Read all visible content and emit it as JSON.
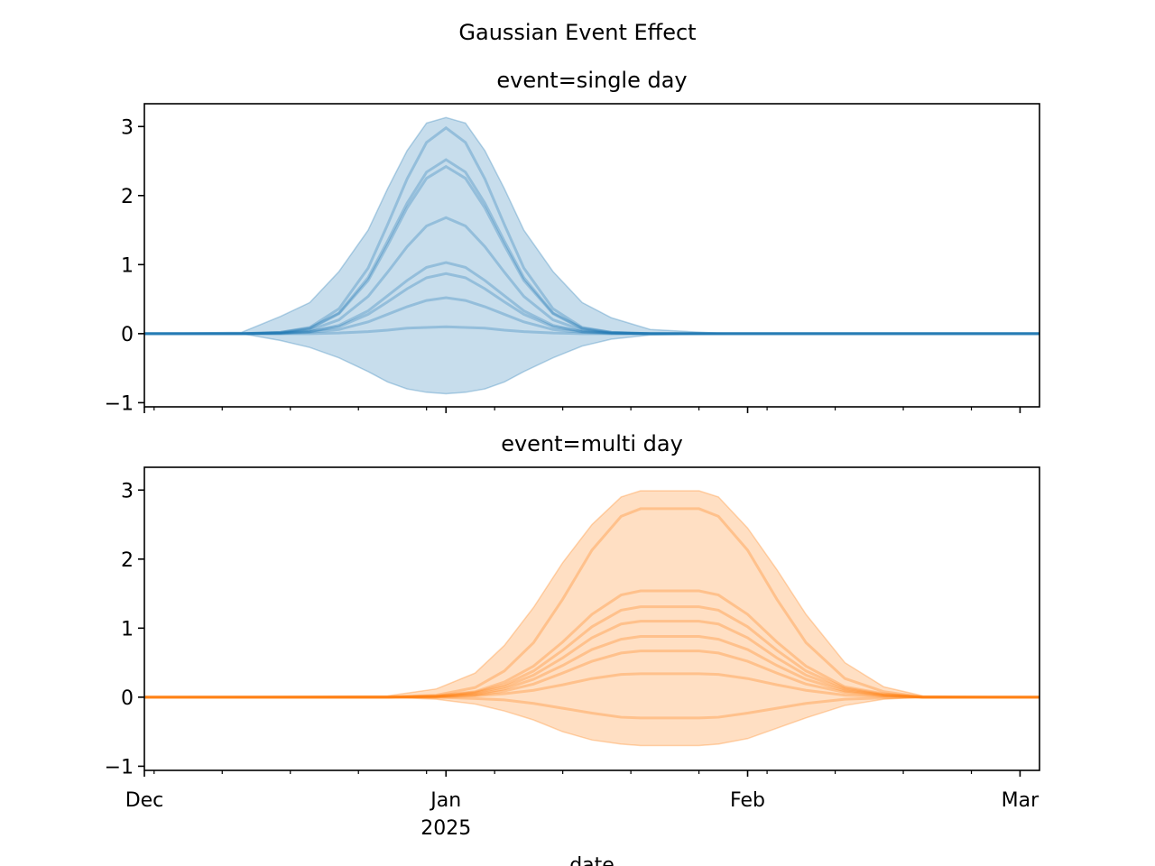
{
  "title": "Gaussian Event Effect",
  "chart_data": [
    {
      "type": "line",
      "title": "event=single day",
      "color": "#1f77b4",
      "x": [
        0,
        10,
        14,
        17,
        20,
        23,
        25,
        27,
        29,
        31,
        33,
        35,
        37,
        39,
        42,
        45,
        48,
        52,
        60,
        92
      ],
      "xlim": [
        0,
        92
      ],
      "ylim": [
        -1.06,
        3.33
      ],
      "yticks": [
        {
          "value": -1,
          "label": "−1"
        },
        0,
        1,
        2,
        3
      ],
      "band": {
        "upper": [
          0,
          0.02,
          0.25,
          0.45,
          0.9,
          1.5,
          2.1,
          2.65,
          3.05,
          3.13,
          3.05,
          2.65,
          2.1,
          1.5,
          0.9,
          0.45,
          0.23,
          0.06,
          0,
          0
        ],
        "lower": [
          0,
          0,
          -0.1,
          -0.2,
          -0.35,
          -0.55,
          -0.7,
          -0.8,
          -0.85,
          -0.87,
          -0.85,
          -0.8,
          -0.7,
          -0.55,
          -0.35,
          -0.18,
          -0.08,
          -0.02,
          0,
          0
        ]
      },
      "series": [
        {
          "values": [
            0,
            0,
            0.02,
            0.09,
            0.36,
            0.95,
            1.58,
            2.24,
            2.77,
            2.98,
            2.77,
            2.24,
            1.58,
            0.95,
            0.36,
            0.09,
            0.02,
            0,
            0,
            0
          ]
        },
        {
          "values": [
            0,
            0,
            0.02,
            0.08,
            0.3,
            0.81,
            1.34,
            1.89,
            2.34,
            2.52,
            2.34,
            1.89,
            1.34,
            0.81,
            0.3,
            0.08,
            0.02,
            0,
            0,
            0
          ]
        },
        {
          "values": [
            0,
            0,
            0.01,
            0.07,
            0.29,
            0.77,
            1.28,
            1.82,
            2.25,
            2.42,
            2.25,
            1.82,
            1.28,
            0.77,
            0.29,
            0.07,
            0.01,
            0,
            0,
            0
          ]
        },
        {
          "values": [
            0,
            0,
            0.01,
            0.05,
            0.2,
            0.54,
            0.89,
            1.26,
            1.56,
            1.68,
            1.56,
            1.26,
            0.89,
            0.54,
            0.2,
            0.05,
            0.01,
            0,
            0,
            0
          ]
        },
        {
          "values": [
            0,
            0,
            0.01,
            0.03,
            0.12,
            0.33,
            0.55,
            0.77,
            0.96,
            1.03,
            0.96,
            0.77,
            0.55,
            0.33,
            0.12,
            0.03,
            0.01,
            0,
            0,
            0
          ]
        },
        {
          "values": [
            0,
            0,
            0.01,
            0.03,
            0.1,
            0.28,
            0.46,
            0.65,
            0.81,
            0.87,
            0.81,
            0.65,
            0.46,
            0.28,
            0.1,
            0.03,
            0.01,
            0,
            0,
            0
          ]
        },
        {
          "values": [
            0,
            0,
            0,
            0.02,
            0.06,
            0.17,
            0.28,
            0.39,
            0.48,
            0.52,
            0.48,
            0.39,
            0.28,
            0.17,
            0.06,
            0.02,
            0,
            0,
            0,
            0
          ]
        },
        {
          "values": [
            0,
            0,
            0,
            0,
            0.01,
            0.03,
            0.05,
            0.08,
            0.09,
            0.1,
            0.09,
            0.08,
            0.05,
            0.03,
            0.01,
            0,
            0,
            0,
            0,
            0
          ]
        }
      ]
    },
    {
      "type": "line",
      "title": "event=multi day",
      "color": "#ff7f0e",
      "xlabel": "date",
      "x": [
        0,
        25,
        30,
        34,
        37,
        40,
        43,
        46,
        49,
        51,
        54,
        57,
        59,
        62,
        65,
        68,
        72,
        76,
        80,
        92
      ],
      "xlim": [
        0,
        92
      ],
      "ylim": [
        -1.06,
        3.33
      ],
      "xticks": [
        {
          "value": 0,
          "label": "Dec"
        },
        {
          "value": 31,
          "label": "Jan\n2025"
        },
        {
          "value": 62,
          "label": "Feb"
        },
        {
          "value": 90,
          "label": "Mar"
        }
      ],
      "xminorticks": [
        1,
        8,
        15,
        22,
        29,
        36,
        43,
        50,
        57,
        64,
        71,
        78,
        85
      ],
      "yticks": [
        {
          "value": -1,
          "label": "−1"
        },
        0,
        1,
        2,
        3
      ],
      "band": {
        "upper": [
          0,
          0.02,
          0.12,
          0.35,
          0.75,
          1.3,
          1.95,
          2.5,
          2.9,
          2.99,
          2.99,
          2.99,
          2.9,
          2.45,
          1.85,
          1.2,
          0.5,
          0.15,
          0.02,
          0
        ],
        "lower": [
          0,
          0,
          -0.03,
          -0.1,
          -0.2,
          -0.33,
          -0.5,
          -0.62,
          -0.68,
          -0.7,
          -0.7,
          -0.7,
          -0.68,
          -0.6,
          -0.45,
          -0.3,
          -0.12,
          -0.03,
          0,
          0
        ]
      },
      "series": [
        {
          "values": [
            0,
            0,
            0.03,
            0.14,
            0.38,
            0.79,
            1.42,
            2.13,
            2.62,
            2.73,
            2.73,
            2.73,
            2.62,
            2.13,
            1.42,
            0.79,
            0.27,
            0.08,
            0,
            0
          ]
        },
        {
          "values": [
            0,
            0,
            0.02,
            0.08,
            0.22,
            0.45,
            0.8,
            1.2,
            1.48,
            1.54,
            1.54,
            1.54,
            1.48,
            1.2,
            0.8,
            0.45,
            0.15,
            0.05,
            0,
            0
          ]
        },
        {
          "values": [
            0,
            0,
            0.01,
            0.07,
            0.18,
            0.38,
            0.68,
            1.02,
            1.26,
            1.31,
            1.31,
            1.31,
            1.26,
            1.02,
            0.68,
            0.38,
            0.13,
            0.04,
            0,
            0
          ]
        },
        {
          "values": [
            0,
            0,
            0.01,
            0.06,
            0.15,
            0.32,
            0.57,
            0.86,
            1.06,
            1.1,
            1.1,
            1.1,
            1.06,
            0.86,
            0.57,
            0.32,
            0.11,
            0.03,
            0,
            0
          ]
        },
        {
          "values": [
            0,
            0,
            0.01,
            0.04,
            0.12,
            0.26,
            0.46,
            0.69,
            0.84,
            0.88,
            0.88,
            0.88,
            0.84,
            0.69,
            0.46,
            0.26,
            0.09,
            0.03,
            0,
            0
          ]
        },
        {
          "values": [
            0,
            0,
            0.01,
            0.03,
            0.09,
            0.19,
            0.35,
            0.52,
            0.64,
            0.67,
            0.67,
            0.67,
            0.64,
            0.52,
            0.35,
            0.19,
            0.07,
            0.02,
            0,
            0
          ]
        },
        {
          "values": [
            0,
            0,
            0,
            0.02,
            0.05,
            0.1,
            0.18,
            0.27,
            0.33,
            0.34,
            0.34,
            0.34,
            0.33,
            0.27,
            0.18,
            0.1,
            0.03,
            0.01,
            0,
            0
          ]
        },
        {
          "values": [
            0,
            0,
            0,
            -0.02,
            -0.04,
            -0.09,
            -0.16,
            -0.23,
            -0.29,
            -0.3,
            -0.3,
            -0.3,
            -0.29,
            -0.23,
            -0.16,
            -0.09,
            -0.03,
            -0.01,
            0,
            0
          ]
        }
      ]
    }
  ]
}
